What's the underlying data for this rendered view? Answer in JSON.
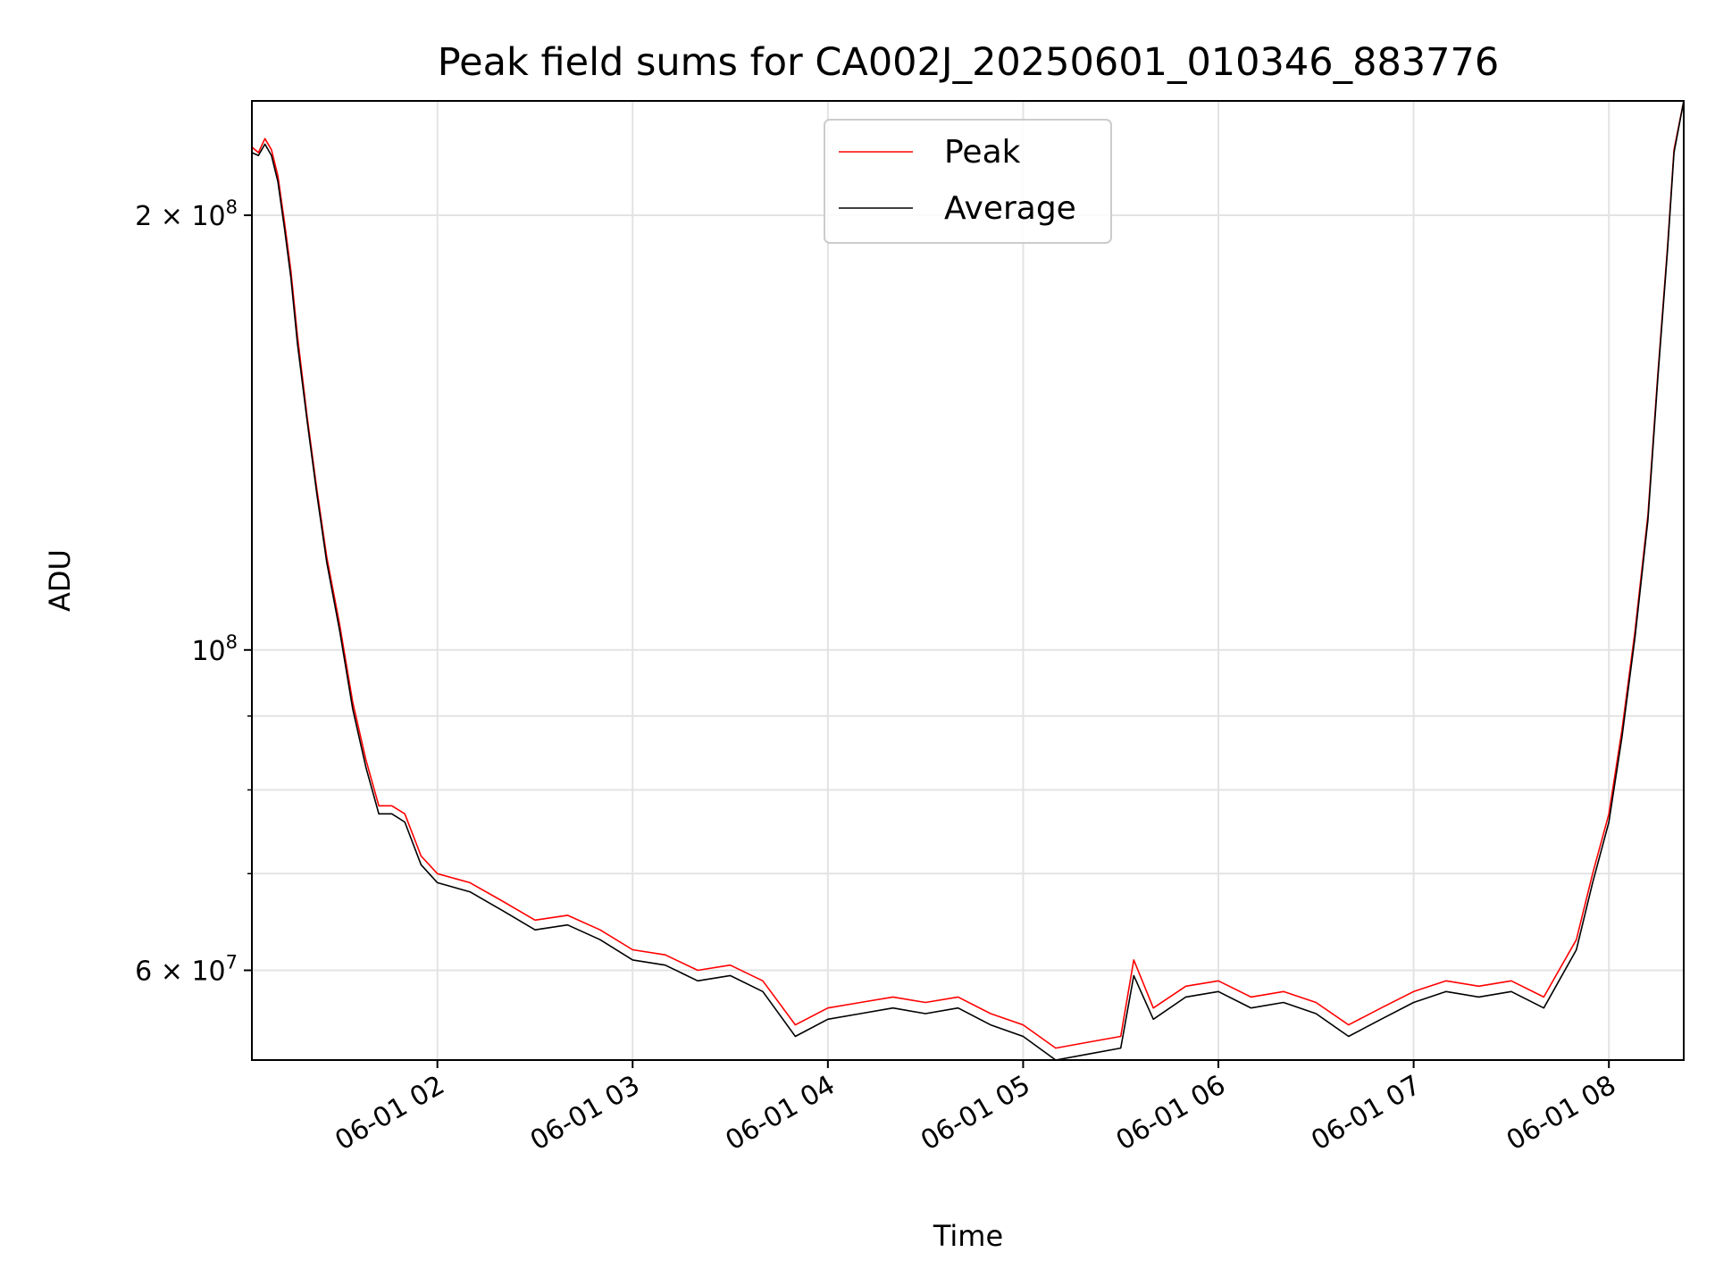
{
  "chart_data": {
    "type": "line",
    "title": "Peak field sums for CA002J_20250601_010346_883776",
    "xlabel": "Time",
    "ylabel": "ADU",
    "x_scale": "time",
    "y_scale": "log",
    "xlim": [
      "2025-06-01 01:03",
      "2025-06-01 08:23"
    ],
    "ylim": [
      52000000,
      240000000
    ],
    "grid": true,
    "legend_position": "upper center",
    "x_ticks": [
      {
        "value": "2025-06-01 02:00",
        "label": "06-01 02"
      },
      {
        "value": "2025-06-01 03:00",
        "label": "06-01 03"
      },
      {
        "value": "2025-06-01 04:00",
        "label": "06-01 04"
      },
      {
        "value": "2025-06-01 05:00",
        "label": "06-01 05"
      },
      {
        "value": "2025-06-01 06:00",
        "label": "06-01 06"
      },
      {
        "value": "2025-06-01 07:00",
        "label": "06-01 07"
      },
      {
        "value": "2025-06-01 08:00",
        "label": "06-01 08"
      }
    ],
    "y_major_ticks": [
      {
        "value": 60000000,
        "base": "6",
        "sep": " × ",
        "tenpow": "10",
        "exp": "7"
      },
      {
        "value": 100000000,
        "base": "",
        "sep": "",
        "tenpow": "10",
        "exp": "8"
      },
      {
        "value": 200000000,
        "base": "2",
        "sep": " × ",
        "tenpow": "10",
        "exp": "8"
      }
    ],
    "y_minor_ticks": [
      70000000,
      80000000,
      90000000
    ],
    "series": [
      {
        "name": "Peak",
        "color": "#ff0000",
        "x": [
          "2025-06-01 01:03",
          "2025-06-01 01:05",
          "2025-06-01 01:07",
          "2025-06-01 01:09",
          "2025-06-01 01:11",
          "2025-06-01 01:13",
          "2025-06-01 01:15",
          "2025-06-01 01:17",
          "2025-06-01 01:20",
          "2025-06-01 01:23",
          "2025-06-01 01:26",
          "2025-06-01 01:30",
          "2025-06-01 01:34",
          "2025-06-01 01:38",
          "2025-06-01 01:42",
          "2025-06-01 01:46",
          "2025-06-01 01:50",
          "2025-06-01 01:55",
          "2025-06-01 02:00",
          "2025-06-01 02:10",
          "2025-06-01 02:20",
          "2025-06-01 02:30",
          "2025-06-01 02:40",
          "2025-06-01 02:50",
          "2025-06-01 03:00",
          "2025-06-01 03:10",
          "2025-06-01 03:20",
          "2025-06-01 03:30",
          "2025-06-01 03:40",
          "2025-06-01 03:50",
          "2025-06-01 04:00",
          "2025-06-01 04:10",
          "2025-06-01 04:20",
          "2025-06-01 04:30",
          "2025-06-01 04:40",
          "2025-06-01 04:50",
          "2025-06-01 05:00",
          "2025-06-01 05:10",
          "2025-06-01 05:20",
          "2025-06-01 05:30",
          "2025-06-01 05:34",
          "2025-06-01 05:40",
          "2025-06-01 05:50",
          "2025-06-01 06:00",
          "2025-06-01 06:10",
          "2025-06-01 06:20",
          "2025-06-01 06:30",
          "2025-06-01 06:40",
          "2025-06-01 06:50",
          "2025-06-01 07:00",
          "2025-06-01 07:10",
          "2025-06-01 07:20",
          "2025-06-01 07:30",
          "2025-06-01 07:40",
          "2025-06-01 07:50",
          "2025-06-01 07:55",
          "2025-06-01 08:00",
          "2025-06-01 08:04",
          "2025-06-01 08:08",
          "2025-06-01 08:12",
          "2025-06-01 08:15",
          "2025-06-01 08:18",
          "2025-06-01 08:20",
          "2025-06-01 08:23"
        ],
        "values": [
          223000000,
          221000000,
          226000000,
          222000000,
          213000000,
          198000000,
          183000000,
          165000000,
          145000000,
          129000000,
          116000000,
          104000000,
          92000000,
          84000000,
          78000000,
          78000000,
          77000000,
          72000000,
          70000000,
          69000000,
          67000000,
          65000000,
          65500000,
          64000000,
          62000000,
          61500000,
          60000000,
          60500000,
          59000000,
          55000000,
          56500000,
          57000000,
          57500000,
          57000000,
          57500000,
          56000000,
          55000000,
          53000000,
          53500000,
          54000000,
          61000000,
          56500000,
          58500000,
          59000000,
          57500000,
          58000000,
          57000000,
          55000000,
          56500000,
          58000000,
          59000000,
          58500000,
          59000000,
          57500000,
          63000000,
          70000000,
          77000000,
          88000000,
          103000000,
          124000000,
          155000000,
          190000000,
          222000000,
          240000000
        ]
      },
      {
        "name": "Average",
        "color": "#000000",
        "x": [
          "2025-06-01 01:03",
          "2025-06-01 01:05",
          "2025-06-01 01:07",
          "2025-06-01 01:09",
          "2025-06-01 01:11",
          "2025-06-01 01:13",
          "2025-06-01 01:15",
          "2025-06-01 01:17",
          "2025-06-01 01:20",
          "2025-06-01 01:23",
          "2025-06-01 01:26",
          "2025-06-01 01:30",
          "2025-06-01 01:34",
          "2025-06-01 01:38",
          "2025-06-01 01:42",
          "2025-06-01 01:46",
          "2025-06-01 01:50",
          "2025-06-01 01:55",
          "2025-06-01 02:00",
          "2025-06-01 02:10",
          "2025-06-01 02:20",
          "2025-06-01 02:30",
          "2025-06-01 02:40",
          "2025-06-01 02:50",
          "2025-06-01 03:00",
          "2025-06-01 03:10",
          "2025-06-01 03:20",
          "2025-06-01 03:30",
          "2025-06-01 03:40",
          "2025-06-01 03:50",
          "2025-06-01 04:00",
          "2025-06-01 04:10",
          "2025-06-01 04:20",
          "2025-06-01 04:30",
          "2025-06-01 04:40",
          "2025-06-01 04:50",
          "2025-06-01 05:00",
          "2025-06-01 05:10",
          "2025-06-01 05:20",
          "2025-06-01 05:30",
          "2025-06-01 05:34",
          "2025-06-01 05:40",
          "2025-06-01 05:50",
          "2025-06-01 06:00",
          "2025-06-01 06:10",
          "2025-06-01 06:20",
          "2025-06-01 06:30",
          "2025-06-01 06:40",
          "2025-06-01 06:50",
          "2025-06-01 07:00",
          "2025-06-01 07:10",
          "2025-06-01 07:20",
          "2025-06-01 07:30",
          "2025-06-01 07:40",
          "2025-06-01 07:50",
          "2025-06-01 07:55",
          "2025-06-01 08:00",
          "2025-06-01 08:04",
          "2025-06-01 08:08",
          "2025-06-01 08:12",
          "2025-06-01 08:15",
          "2025-06-01 08:18",
          "2025-06-01 08:20",
          "2025-06-01 08:23"
        ],
        "values": [
          221000000,
          220000000,
          224000000,
          220000000,
          211000000,
          196000000,
          181000000,
          163000000,
          144000000,
          128000000,
          115000000,
          103000000,
          91000000,
          83000000,
          77000000,
          77000000,
          76000000,
          71000000,
          69000000,
          68000000,
          66000000,
          64000000,
          64500000,
          63000000,
          61000000,
          60500000,
          59000000,
          59500000,
          58000000,
          54000000,
          55500000,
          56000000,
          56500000,
          56000000,
          56500000,
          55000000,
          54000000,
          52000000,
          52500000,
          53000000,
          59500000,
          55500000,
          57500000,
          58000000,
          56500000,
          57000000,
          56000000,
          54000000,
          55500000,
          57000000,
          58000000,
          57500000,
          58000000,
          56500000,
          62000000,
          69000000,
          76000000,
          87000000,
          102000000,
          123000000,
          154000000,
          189000000,
          221000000,
          240000000
        ]
      }
    ]
  }
}
